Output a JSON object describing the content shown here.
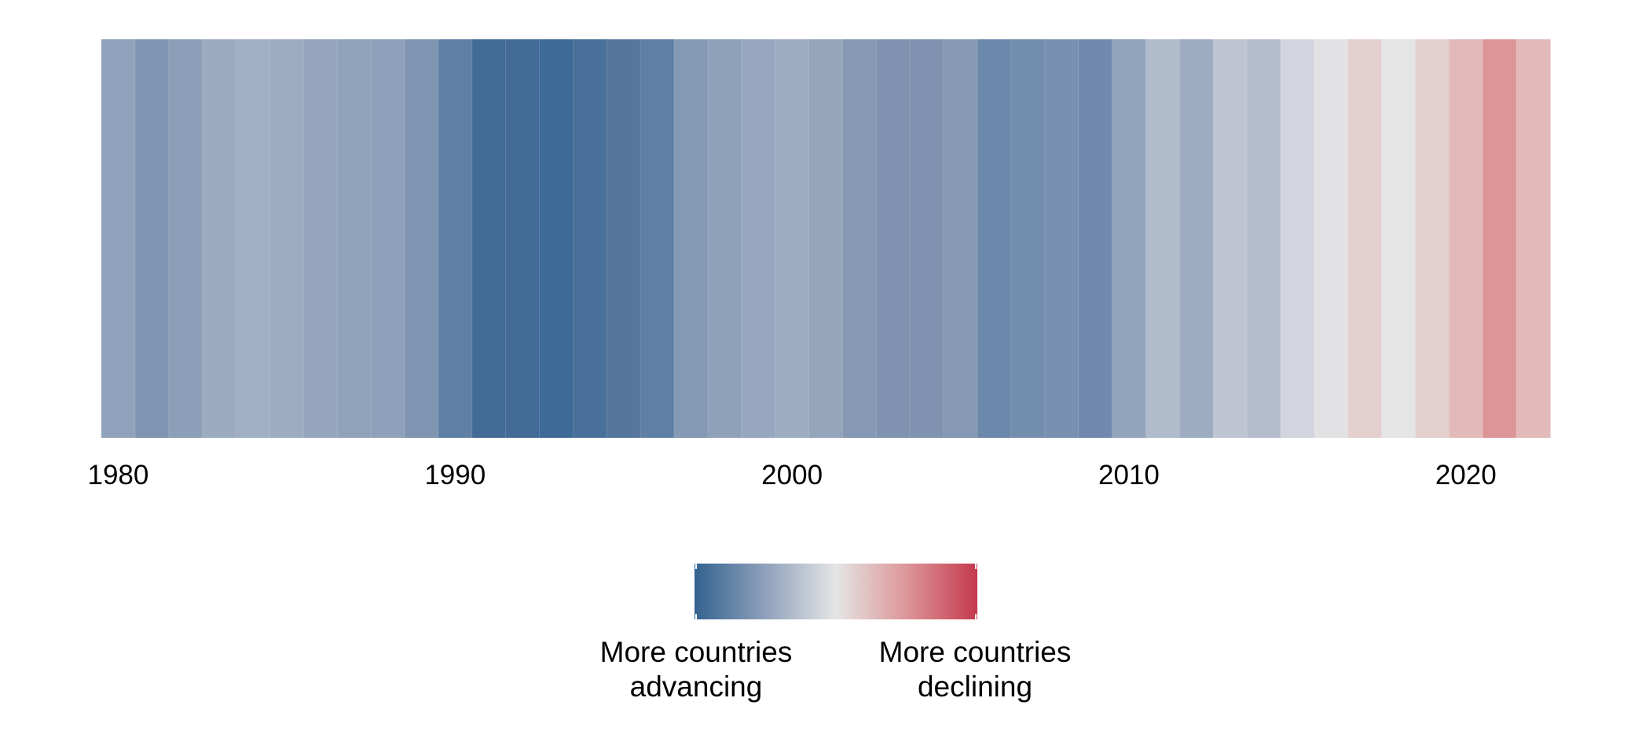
{
  "chart_data": {
    "type": "heatmap",
    "title": "",
    "xlabel": "",
    "ylabel": "",
    "x": [
      1980,
      1981,
      1982,
      1983,
      1984,
      1985,
      1986,
      1987,
      1988,
      1989,
      1990,
      1991,
      1992,
      1993,
      1994,
      1995,
      1996,
      1997,
      1998,
      1999,
      2000,
      2001,
      2002,
      2003,
      2004,
      2005,
      2006,
      2007,
      2008,
      2009,
      2010,
      2011,
      2012,
      2013,
      2014,
      2015,
      2016,
      2017,
      2018,
      2019,
      2020,
      2021,
      2022
    ],
    "colors": [
      "#8fa1bb",
      "#8095b1",
      "#8b9fb8",
      "#9dabc1",
      "#a1afc4",
      "#9eacc2",
      "#95a5bd",
      "#90a2ba",
      "#8fa1ba",
      "#7f94b0",
      "#5f7fa5",
      "#436b97",
      "#436b97",
      "#3d6a96",
      "#48709a",
      "#57769e",
      "#5f7fa5",
      "#8499b4",
      "#8ea1b9",
      "#97a7bf",
      "#9eacc2",
      "#94a5bc",
      "#8699b4",
      "#7f93b0",
      "#7f93b0",
      "#8599b4",
      "#6c88ab",
      "#728dae",
      "#7891b1",
      "#7089ad",
      "#92a3bc",
      "#b0bbcc",
      "#9eacc2",
      "#bfc5d1",
      "#b5bdcd",
      "#d2d5de",
      "#e2e2e4",
      "#e4cfcf",
      "#e5e5e5",
      "#e4cfcf",
      "#e2baba",
      "#dc9698",
      "#e2baba"
    ],
    "xticks": [
      "1980",
      "1990",
      "2000",
      "2010",
      "2020"
    ],
    "xtick_values": [
      1980,
      1990,
      2000,
      2010,
      2020
    ],
    "grid": false,
    "legend": {
      "placement": "bottom",
      "type": "colorbar",
      "gradient": [
        "#33628f",
        "#8fa1bb",
        "#e5e5e5",
        "#dc9698",
        "#c4394e"
      ],
      "low_label": "More countries advancing",
      "low_label_lines": [
        "More countries",
        "advancing"
      ],
      "high_label": "More countries declining",
      "high_label_lines": [
        "More countries",
        "declining"
      ]
    }
  }
}
